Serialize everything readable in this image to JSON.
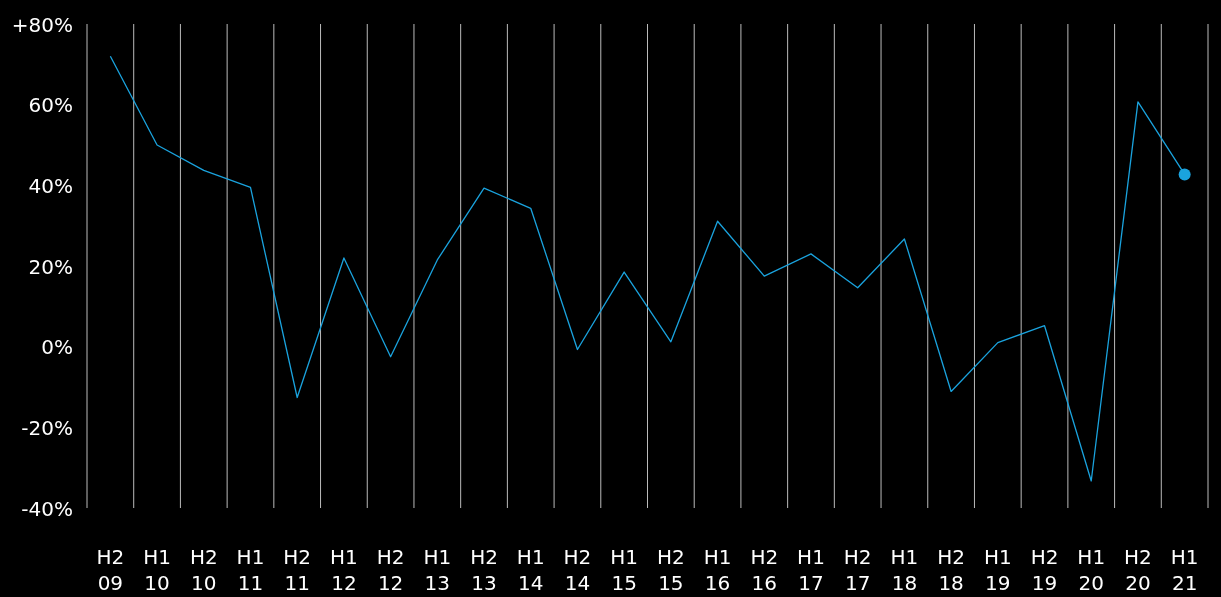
{
  "chart_data": {
    "type": "line",
    "categories": [
      "H2 09",
      "H1 10",
      "H2 10",
      "H1 11",
      "H2 11",
      "H1 12",
      "H2 12",
      "H1 13",
      "H2 13",
      "H1 14",
      "H2 14",
      "H1 15",
      "H2 15",
      "H1 16",
      "H2 16",
      "H1 17",
      "H2 17",
      "H1 18",
      "H2 18",
      "H1 19",
      "H2 19",
      "H1 20",
      "H2 20",
      "H1 21"
    ],
    "series": [
      {
        "marker": "none",
        "color": "#1aa3de",
        "values": [
          72,
          50,
          43.7,
          39.5,
          -12.6,
          22,
          -2.5,
          21.5,
          39.3,
          34.3,
          -0.7,
          18.5,
          1.2,
          31.1,
          17.5,
          23,
          14.6,
          26.7,
          -11.1,
          1,
          5.2,
          -33.3,
          60.7,
          42.7
        ]
      },
      {
        "type": "scatter",
        "marker": "circle",
        "color": "#1aa3de",
        "values": [
          null,
          null,
          null,
          null,
          null,
          null,
          null,
          null,
          null,
          null,
          null,
          null,
          null,
          null,
          null,
          null,
          null,
          null,
          null,
          null,
          null,
          null,
          null,
          42.7
        ]
      }
    ],
    "ylim": [
      -40,
      80
    ],
    "yticks": [
      {
        "value": -40,
        "label": "-40%"
      },
      {
        "value": -20,
        "label": "-20%"
      },
      {
        "value": 0,
        "label": "0%"
      },
      {
        "value": 20,
        "label": "20%"
      },
      {
        "value": 40,
        "label": "40%"
      },
      {
        "value": 60,
        "label": "60%"
      },
      {
        "value": 80,
        "label": "+80%"
      }
    ],
    "grid": "x"
  }
}
